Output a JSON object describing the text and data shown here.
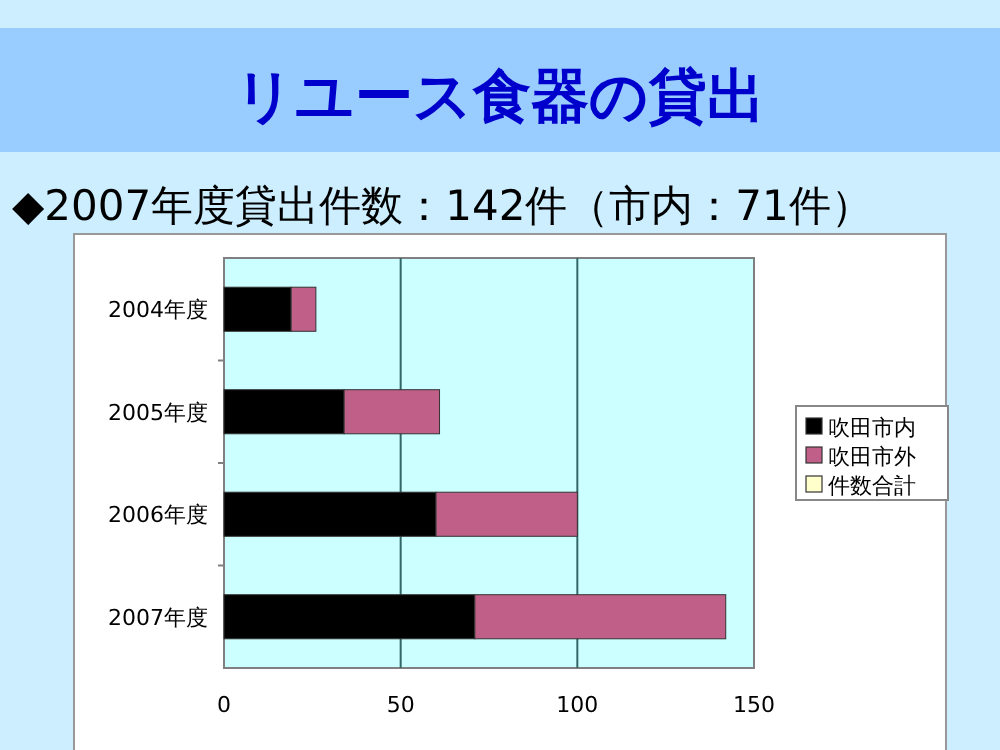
{
  "chart_data": {
    "type": "bar",
    "orientation": "horizontal",
    "stacked": true,
    "title": "リユース食器の貸出",
    "subtitle": "◆2007年度貸出件数：142件（市内：71件）",
    "categories": [
      "2004年度",
      "2005年度",
      "2006年度",
      "2007年度"
    ],
    "series": [
      {
        "name": "吹田市内",
        "color": "#000000",
        "values": [
          19,
          34,
          60,
          71
        ]
      },
      {
        "name": "吹田市外",
        "color": "#c06088",
        "values": [
          7,
          27,
          40,
          71
        ]
      },
      {
        "name": "件数合計",
        "color": "#ffffcc",
        "values": [
          null,
          null,
          null,
          null
        ]
      }
    ],
    "xlim": [
      0,
      150
    ],
    "xticks": [
      0,
      50,
      100,
      150
    ],
    "grid": "x",
    "legend": "right"
  }
}
